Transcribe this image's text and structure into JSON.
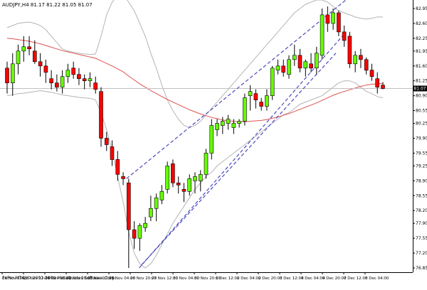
{
  "header": "AUDJPY,H4  81.17 81.22 81.05 81.07",
  "footer": "FxPro MT4, © 2001-2009 MetaQuotes Software Corp.",
  "current_price_label": "81.07",
  "colors": {
    "bull": "#66ff00",
    "bear": "#ff0000",
    "wick": "#000000",
    "bands": "#b4b4b4",
    "ma": "#e05050",
    "channel": "#4a4abf",
    "axis": "#000000",
    "price_line": "#c0c0c0"
  },
  "chart_data": {
    "type": "candlestick",
    "title": "AUDJPY,H4",
    "y_ticks": [
      "82.95",
      "82.60",
      "82.25",
      "81.95",
      "81.60",
      "81.25",
      "80.90",
      "80.55",
      "80.25",
      "79.90",
      "79.55",
      "79.25",
      "78.90",
      "78.55",
      "78.20",
      "77.90",
      "77.55",
      "77.20",
      "76.85"
    ],
    "x_ticks": [
      "20 Nov 2009",
      "23 Nov 12:00",
      "24 Nov 08:00",
      "24 Nov 20:00",
      "25 Nov 12:00",
      "26 Nov 04:00",
      "26 Nov 20:00",
      "27 Nov 12:00",
      "30 Nov 04:00",
      "30 Nov 20:00",
      "1 Dec 12:00",
      "2 Dec 04:00",
      "2 Dec 20:00",
      "3 Dec 12:00",
      "4 Dec 04:00",
      "4 Dec 20:00",
      "7 Dec 12:00",
      "8 Dec 04:00"
    ],
    "ylim": [
      76.75,
      83.15
    ],
    "current_price": 81.07,
    "candles": [
      {
        "o": 81.55,
        "h": 81.7,
        "l": 80.95,
        "c": 81.2
      },
      {
        "o": 81.2,
        "h": 81.9,
        "l": 80.9,
        "c": 81.65
      },
      {
        "o": 81.65,
        "h": 82.1,
        "l": 81.4,
        "c": 81.95
      },
      {
        "o": 81.95,
        "h": 82.3,
        "l": 81.7,
        "c": 82.05
      },
      {
        "o": 82.05,
        "h": 82.3,
        "l": 81.85,
        "c": 82.0
      },
      {
        "o": 81.95,
        "h": 82.2,
        "l": 81.65,
        "c": 81.7
      },
      {
        "o": 81.7,
        "h": 81.9,
        "l": 81.35,
        "c": 81.6
      },
      {
        "o": 81.6,
        "h": 81.75,
        "l": 81.2,
        "c": 81.45
      },
      {
        "o": 81.3,
        "h": 81.5,
        "l": 81.05,
        "c": 81.2
      },
      {
        "o": 81.2,
        "h": 81.4,
        "l": 81.0,
        "c": 81.1
      },
      {
        "o": 81.1,
        "h": 81.5,
        "l": 80.95,
        "c": 81.35
      },
      {
        "o": 81.35,
        "h": 81.65,
        "l": 81.2,
        "c": 81.5
      },
      {
        "o": 81.55,
        "h": 81.7,
        "l": 81.3,
        "c": 81.4
      },
      {
        "o": 81.4,
        "h": 81.55,
        "l": 81.15,
        "c": 81.3
      },
      {
        "o": 81.3,
        "h": 81.4,
        "l": 81.05,
        "c": 81.25
      },
      {
        "o": 81.25,
        "h": 81.45,
        "l": 81.1,
        "c": 81.3
      },
      {
        "o": 81.2,
        "h": 81.35,
        "l": 80.95,
        "c": 81.05
      },
      {
        "o": 81.0,
        "h": 81.1,
        "l": 79.7,
        "c": 79.9
      },
      {
        "o": 79.9,
        "h": 80.05,
        "l": 79.6,
        "c": 79.75
      },
      {
        "o": 79.7,
        "h": 79.85,
        "l": 79.25,
        "c": 79.4
      },
      {
        "o": 79.4,
        "h": 79.6,
        "l": 78.9,
        "c": 79.05
      },
      {
        "o": 79.0,
        "h": 79.1,
        "l": 78.8,
        "c": 78.95
      },
      {
        "o": 78.85,
        "h": 78.95,
        "l": 76.85,
        "c": 77.75
      },
      {
        "o": 77.75,
        "h": 77.95,
        "l": 77.3,
        "c": 77.55
      },
      {
        "o": 77.55,
        "h": 77.9,
        "l": 77.25,
        "c": 77.85
      },
      {
        "o": 77.8,
        "h": 78.05,
        "l": 77.7,
        "c": 77.9
      },
      {
        "o": 78.05,
        "h": 78.55,
        "l": 77.95,
        "c": 78.25
      },
      {
        "o": 78.25,
        "h": 78.6,
        "l": 77.95,
        "c": 78.5
      },
      {
        "o": 78.45,
        "h": 78.8,
        "l": 78.35,
        "c": 78.65
      },
      {
        "o": 78.7,
        "h": 79.35,
        "l": 78.6,
        "c": 79.25
      },
      {
        "o": 79.3,
        "h": 79.4,
        "l": 78.75,
        "c": 78.85
      },
      {
        "o": 78.85,
        "h": 79.0,
        "l": 78.6,
        "c": 78.8
      },
      {
        "o": 78.7,
        "h": 78.85,
        "l": 78.4,
        "c": 78.65
      },
      {
        "o": 78.65,
        "h": 79.05,
        "l": 78.55,
        "c": 78.95
      },
      {
        "o": 78.9,
        "h": 79.1,
        "l": 78.6,
        "c": 79.0
      },
      {
        "o": 78.9,
        "h": 79.15,
        "l": 78.65,
        "c": 79.05
      },
      {
        "o": 79.05,
        "h": 79.65,
        "l": 78.95,
        "c": 79.55
      },
      {
        "o": 79.55,
        "h": 80.35,
        "l": 79.4,
        "c": 80.2
      },
      {
        "o": 80.1,
        "h": 80.35,
        "l": 79.95,
        "c": 80.25
      },
      {
        "o": 80.2,
        "h": 80.4,
        "l": 80.0,
        "c": 80.3
      },
      {
        "o": 80.25,
        "h": 80.45,
        "l": 80.1,
        "c": 80.35
      },
      {
        "o": 80.15,
        "h": 80.35,
        "l": 80.0,
        "c": 80.25
      },
      {
        "o": 80.25,
        "h": 80.35,
        "l": 80.15,
        "c": 80.3
      },
      {
        "o": 80.3,
        "h": 80.95,
        "l": 80.2,
        "c": 80.85
      },
      {
        "o": 80.9,
        "h": 81.15,
        "l": 80.55,
        "c": 81.0
      },
      {
        "o": 80.95,
        "h": 81.05,
        "l": 80.6,
        "c": 80.8
      },
      {
        "o": 80.75,
        "h": 80.85,
        "l": 80.55,
        "c": 80.65
      },
      {
        "o": 80.65,
        "h": 81.05,
        "l": 80.55,
        "c": 80.9
      },
      {
        "o": 80.9,
        "h": 81.6,
        "l": 80.8,
        "c": 81.55
      },
      {
        "o": 81.5,
        "h": 81.75,
        "l": 81.4,
        "c": 81.6
      },
      {
        "o": 81.6,
        "h": 81.75,
        "l": 81.35,
        "c": 81.45
      },
      {
        "o": 81.4,
        "h": 81.85,
        "l": 81.3,
        "c": 81.75
      },
      {
        "o": 81.75,
        "h": 82.1,
        "l": 81.6,
        "c": 81.85
      },
      {
        "o": 81.85,
        "h": 82.0,
        "l": 81.45,
        "c": 81.55
      },
      {
        "o": 81.55,
        "h": 81.75,
        "l": 81.35,
        "c": 81.7
      },
      {
        "o": 81.65,
        "h": 81.9,
        "l": 81.45,
        "c": 81.55
      },
      {
        "o": 81.55,
        "h": 82.05,
        "l": 81.4,
        "c": 81.9
      },
      {
        "o": 81.85,
        "h": 82.95,
        "l": 81.75,
        "c": 82.8
      },
      {
        "o": 82.8,
        "h": 83.0,
        "l": 82.4,
        "c": 82.6
      },
      {
        "o": 82.6,
        "h": 82.95,
        "l": 82.45,
        "c": 82.85
      },
      {
        "o": 82.85,
        "h": 82.9,
        "l": 82.3,
        "c": 82.4
      },
      {
        "o": 82.4,
        "h": 82.55,
        "l": 82.05,
        "c": 82.2
      },
      {
        "o": 82.3,
        "h": 82.4,
        "l": 81.55,
        "c": 81.65
      },
      {
        "o": 81.65,
        "h": 81.95,
        "l": 81.45,
        "c": 81.85
      },
      {
        "o": 81.85,
        "h": 82.0,
        "l": 81.55,
        "c": 81.75
      },
      {
        "o": 81.75,
        "h": 81.8,
        "l": 81.4,
        "c": 81.5
      },
      {
        "o": 81.5,
        "h": 81.65,
        "l": 81.25,
        "c": 81.35
      },
      {
        "o": 81.3,
        "h": 81.45,
        "l": 80.95,
        "c": 81.1
      },
      {
        "o": 81.15,
        "h": 81.22,
        "l": 81.05,
        "c": 81.07
      }
    ],
    "ma": [
      82.25,
      82.24,
      82.22,
      82.2,
      82.18,
      82.15,
      82.12,
      82.08,
      82.04,
      82.0,
      81.96,
      81.93,
      81.9,
      81.87,
      81.84,
      81.81,
      81.78,
      81.72,
      81.66,
      81.6,
      81.53,
      81.46,
      81.36,
      81.27,
      81.18,
      81.1,
      81.02,
      80.95,
      80.88,
      80.81,
      80.75,
      80.69,
      80.63,
      80.57,
      80.52,
      80.47,
      80.43,
      80.39,
      80.36,
      80.33,
      80.31,
      80.3,
      80.29,
      80.29,
      80.3,
      80.31,
      80.32,
      80.34,
      80.37,
      80.4,
      80.44,
      80.48,
      80.53,
      80.58,
      80.63,
      80.68,
      80.73,
      80.79,
      80.85,
      80.91,
      80.96,
      81.0,
      81.04,
      81.08,
      81.12,
      81.15,
      81.17,
      81.18,
      81.19
    ],
    "band_upper": [
      82.5,
      82.55,
      82.6,
      82.62,
      82.63,
      82.6,
      82.55,
      82.45,
      82.3,
      82.15,
      82.0,
      81.95,
      81.92,
      81.9,
      81.88,
      81.87,
      81.88,
      82.3,
      82.8,
      83.1,
      83.25,
      83.3,
      83.1,
      82.9,
      82.6,
      82.3,
      81.9,
      81.55,
      81.15,
      80.8,
      80.55,
      80.35,
      80.2,
      80.15,
      80.2,
      80.3,
      80.45,
      80.6,
      80.75,
      80.9,
      81.05,
      81.2,
      81.35,
      81.5,
      81.65,
      81.8,
      81.95,
      82.1,
      82.25,
      82.4,
      82.55,
      82.7,
      82.85,
      82.95,
      83.05,
      83.1,
      83.15,
      83.15,
      83.1,
      83.0,
      82.9,
      82.85,
      82.8,
      82.75,
      82.72,
      82.7,
      82.72,
      82.75,
      82.75
    ],
    "band_lower": [
      80.9,
      80.92,
      80.95,
      80.96,
      80.98,
      81.0,
      81.02,
      81.0,
      80.98,
      80.95,
      80.92,
      80.9,
      80.88,
      80.86,
      80.85,
      80.84,
      80.8,
      80.5,
      80.1,
      79.6,
      79.0,
      78.4,
      77.7,
      77.2,
      76.95,
      76.85,
      76.95,
      77.15,
      77.4,
      77.65,
      77.9,
      78.1,
      78.3,
      78.5,
      78.7,
      78.85,
      79.0,
      79.1,
      79.25,
      79.35,
      79.45,
      79.55,
      79.65,
      79.75,
      79.85,
      79.95,
      80.05,
      80.15,
      80.25,
      80.35,
      80.45,
      80.5,
      80.6,
      80.7,
      80.75,
      80.8,
      80.85,
      80.9,
      81.0,
      81.1,
      81.2,
      81.25,
      81.25,
      81.2,
      81.1,
      81.0,
      80.95,
      80.88,
      80.85
    ],
    "channel_lines": [
      {
        "i0": 21.6,
        "p0": 78.95,
        "i1": 61.3,
        "p1": 83.15
      },
      {
        "i0": 24.3,
        "p0": 76.92,
        "i1": 59.5,
        "p1": 81.9
      },
      {
        "i0": 23.9,
        "p0": 76.85,
        "i1": 61.0,
        "p1": 82.35
      }
    ]
  }
}
